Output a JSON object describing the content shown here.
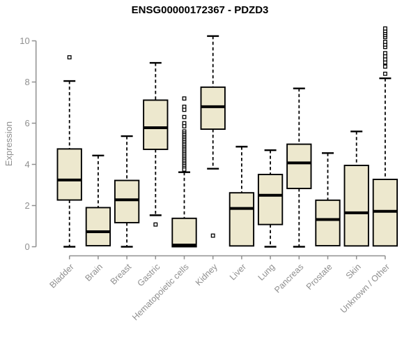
{
  "chart_data": {
    "type": "boxplot",
    "title": "ENSG00000172367 - PDZD3",
    "xlabel": "",
    "ylabel": "Expression",
    "ylim": [
      0,
      10
    ],
    "yticks": [
      0,
      2,
      4,
      6,
      8,
      10
    ],
    "grid": false,
    "legend": "none",
    "categories": [
      "Bladder",
      "Brain",
      "Breast",
      "Gastric",
      "Hematopoietic cells",
      "Kidney",
      "Liver",
      "Lung",
      "Pancreas",
      "Prostate",
      "Skin",
      "Unknown / Other"
    ],
    "boxes": [
      {
        "label": "Bladder",
        "whisker_low": 0.0,
        "q1": 2.27,
        "median": 3.24,
        "q3": 4.75,
        "whisker_high": 8.05,
        "outliers": [
          9.2
        ]
      },
      {
        "label": "Brain",
        "whisker_low": null,
        "q1": 0.05,
        "median": 0.73,
        "q3": 1.9,
        "whisker_high": 4.43,
        "outliers": []
      },
      {
        "label": "Breast",
        "whisker_low": 0.0,
        "q1": 1.17,
        "median": 2.28,
        "q3": 3.22,
        "whisker_high": 5.37,
        "outliers": []
      },
      {
        "label": "Gastric",
        "whisker_low": 1.53,
        "q1": 4.73,
        "median": 5.78,
        "q3": 7.12,
        "whisker_high": 8.93,
        "outliers": [
          1.08
        ]
      },
      {
        "label": "Hematopoietic cells",
        "whisker_low": null,
        "q1": 0.0,
        "median": 0.08,
        "q3": 1.38,
        "whisker_high": 3.62,
        "outliers": [
          7.2,
          6.8,
          6.65,
          6.3,
          6.0,
          5.85,
          5.6,
          5.5,
          5.42,
          5.33,
          5.25,
          5.17,
          5.08,
          5.0,
          4.92,
          4.83,
          4.75,
          4.67,
          4.58,
          4.5,
          4.42,
          4.33,
          4.25,
          4.17,
          4.08,
          4.0,
          3.92,
          3.83,
          3.75
        ]
      },
      {
        "label": "Kidney",
        "whisker_low": 3.79,
        "q1": 5.71,
        "median": 6.8,
        "q3": 7.75,
        "whisker_high": 10.23,
        "outliers": [
          0.54
        ]
      },
      {
        "label": "Liver",
        "whisker_low": null,
        "q1": 0.04,
        "median": 1.86,
        "q3": 2.62,
        "whisker_high": 4.86,
        "outliers": []
      },
      {
        "label": "Lung",
        "whisker_low": 0.0,
        "q1": 1.08,
        "median": 2.5,
        "q3": 3.51,
        "whisker_high": 4.69,
        "outliers": []
      },
      {
        "label": "Pancreas",
        "whisker_low": 0.0,
        "q1": 2.83,
        "median": 4.07,
        "q3": 4.98,
        "whisker_high": 7.69,
        "outliers": []
      },
      {
        "label": "Prostate",
        "whisker_low": null,
        "q1": 0.05,
        "median": 1.32,
        "q3": 2.26,
        "whisker_high": 4.55,
        "outliers": []
      },
      {
        "label": "Skin",
        "whisker_low": null,
        "q1": 0.04,
        "median": 1.65,
        "q3": 3.95,
        "whisker_high": 5.6,
        "outliers": []
      },
      {
        "label": "Unknown / Other",
        "whisker_low": null,
        "q1": 0.04,
        "median": 1.72,
        "q3": 3.27,
        "whisker_high": 8.18,
        "outliers": [
          8.4,
          8.75,
          8.95,
          9.1,
          9.25,
          9.4,
          9.7,
          9.82,
          9.95,
          10.18,
          10.28,
          10.38,
          10.48,
          10.6
        ]
      }
    ],
    "colors": {
      "box_fill": "#EDE8CE",
      "box_stroke": "#000000",
      "whisker_color": "#000000",
      "outlier_fill": "#ffffff",
      "axis_color": "#8f8f8f",
      "title_color": "#000000"
    }
  }
}
